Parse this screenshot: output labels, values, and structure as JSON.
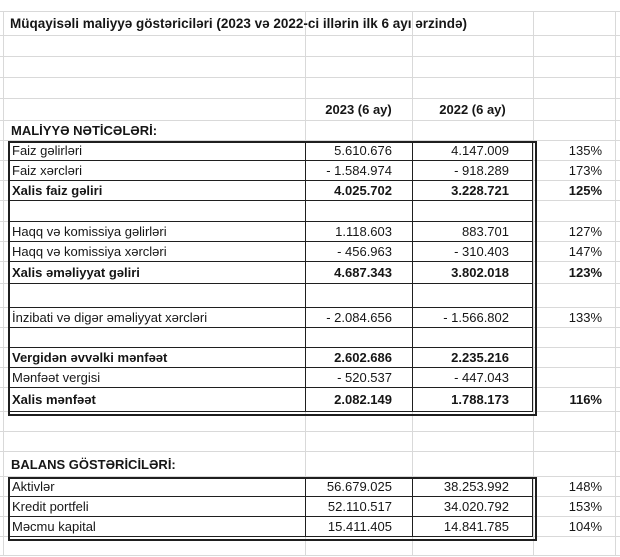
{
  "sheet": {
    "title": "Müqayisəli maliyyə göstəriciləri (2023 və 2022-ci illərin ilk 6 ayı ərzində)",
    "header": {
      "col_2023": "2023 (6 ay)",
      "col_2022": "2022 (6 ay)"
    },
    "finance": {
      "heading": "MALİYYƏ NƏTİCƏLƏRİ:",
      "rows": [
        {
          "label": "Faiz gəlirləri",
          "v2023": "5.610.676",
          "v2022": "4.147.009",
          "pct": "135%"
        },
        {
          "label": "Faiz xərcləri",
          "v2023": "- 1.584.974",
          "v2022": "- 918.289",
          "pct": "173%"
        },
        {
          "label": "Xalis faiz gəliri",
          "v2023": "4.025.702",
          "v2022": "3.228.721",
          "pct": "125%"
        },
        {
          "label": "Haqq və komissiya gəlirləri",
          "v2023": "1.118.603",
          "v2022": "883.701",
          "pct": "127%"
        },
        {
          "label": "Haqq və komissiya xərcləri",
          "v2023": "- 456.963",
          "v2022": "- 310.403",
          "pct": "147%"
        },
        {
          "label": "Xalis əməliyyat gəliri",
          "v2023": "4.687.343",
          "v2022": "3.802.018",
          "pct": "123%"
        },
        {
          "label": "İnzibati və digər əməliyyat xərcləri",
          "v2023": "- 2.084.656",
          "v2022": "- 1.566.802",
          "pct": "133%"
        },
        {
          "label": "Vergidən əvvəlki mənfəət",
          "v2023": "2.602.686",
          "v2022": "2.235.216",
          "pct": ""
        },
        {
          "label": "Mənfəət vergisi",
          "v2023": "- 520.537",
          "v2022": "- 447.043",
          "pct": ""
        },
        {
          "label": "Xalis mənfəət",
          "v2023": "2.082.149",
          "v2022": "1.788.173",
          "pct": "116%"
        }
      ]
    },
    "balance": {
      "heading": "BALANS GÖSTƏRİCİLƏRİ:",
      "rows": [
        {
          "label": "Aktivlər",
          "v2023": "56.679.025",
          "v2022": "38.253.992",
          "pct": "148%"
        },
        {
          "label": "Kredit portfeli",
          "v2023": "52.110.517",
          "v2022": "34.020.792",
          "pct": "153%"
        },
        {
          "label": "Məcmu kapital",
          "v2023": "15.411.405",
          "v2022": "14.841.785",
          "pct": "104%"
        }
      ]
    },
    "colors": {
      "background": "#ffffff",
      "gridline": "#d9d9d9",
      "table_border": "#1f1f1f",
      "text": "#161616"
    }
  }
}
